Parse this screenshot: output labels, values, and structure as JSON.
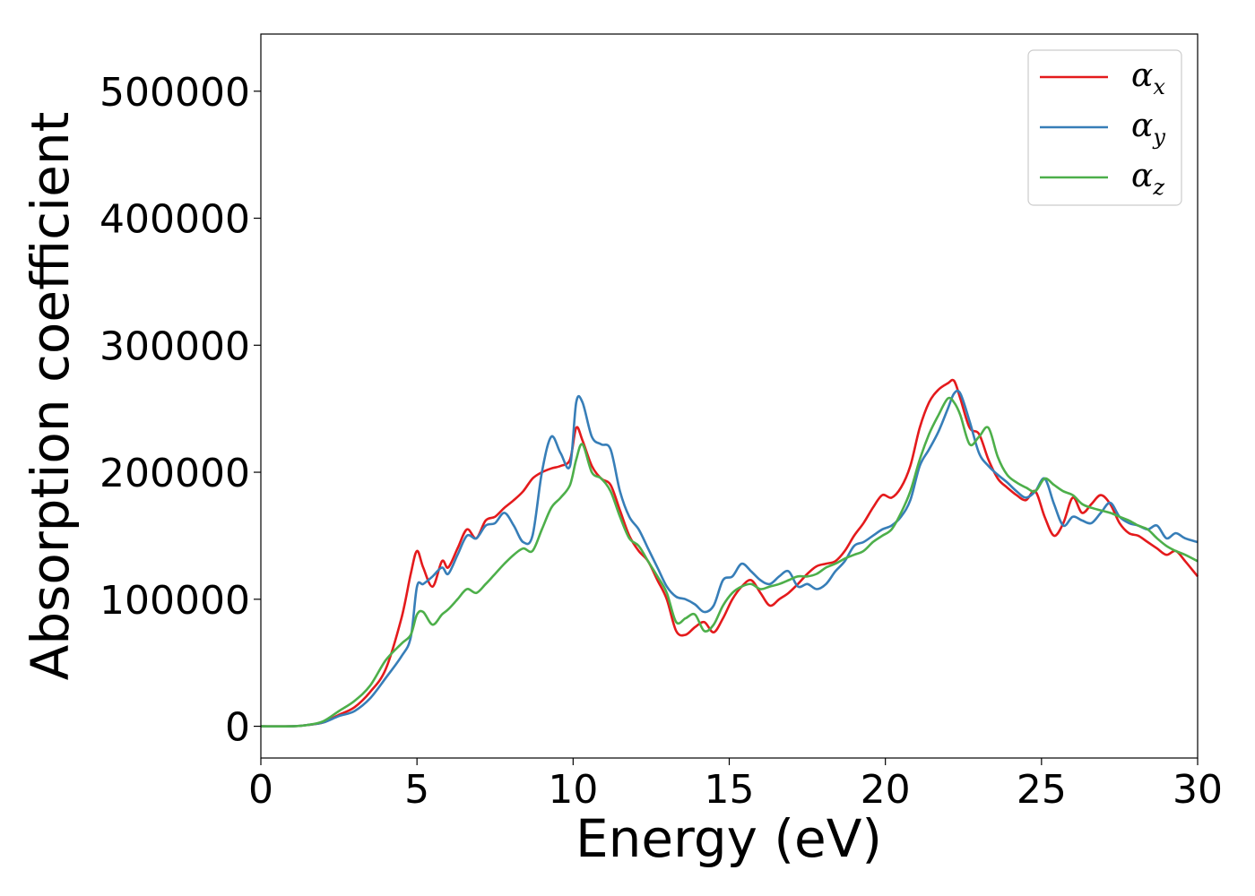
{
  "chart_data": {
    "type": "line",
    "title": "",
    "xlabel": "Energy (eV)",
    "ylabel": "Absorption coefficient",
    "xlim": [
      0,
      30
    ],
    "ylim": [
      -25000,
      545000
    ],
    "xticks": [
      0,
      5,
      10,
      15,
      20,
      25,
      30
    ],
    "yticks": [
      0,
      100000,
      200000,
      300000,
      400000,
      500000
    ],
    "grid": false,
    "legend_position": "top-right",
    "series": [
      {
        "name": "α_x",
        "symbol": "α",
        "subscript": "x",
        "color": "#e41a1c",
        "x": [
          0,
          1,
          1.5,
          2,
          2.5,
          3,
          3.5,
          4,
          4.5,
          4.8,
          5,
          5.2,
          5.5,
          5.8,
          6,
          6.3,
          6.6,
          6.9,
          7.2,
          7.5,
          7.8,
          8.1,
          8.4,
          8.7,
          9,
          9.3,
          9.6,
          9.9,
          10.1,
          10.3,
          10.6,
          10.9,
          11.2,
          11.5,
          11.8,
          12.1,
          12.4,
          12.7,
          13,
          13.3,
          13.6,
          13.9,
          14.2,
          14.5,
          14.8,
          15.1,
          15.4,
          15.7,
          16,
          16.3,
          16.6,
          16.9,
          17.2,
          17.5,
          17.8,
          18.1,
          18.4,
          18.7,
          19,
          19.3,
          19.6,
          19.9,
          20.2,
          20.5,
          20.8,
          21.1,
          21.4,
          21.7,
          22,
          22.2,
          22.4,
          22.7,
          23,
          23.3,
          23.6,
          23.9,
          24.2,
          24.5,
          24.8,
          25.1,
          25.4,
          25.7,
          26,
          26.3,
          26.6,
          26.9,
          27.2,
          27.5,
          27.8,
          28.1,
          28.4,
          28.7,
          29,
          29.3,
          29.6,
          30
        ],
        "y": [
          0,
          0,
          1000,
          3000,
          9000,
          15000,
          27000,
          45000,
          85000,
          120000,
          138000,
          125000,
          110000,
          130000,
          125000,
          140000,
          155000,
          148000,
          162000,
          165000,
          172000,
          178000,
          185000,
          195000,
          200000,
          203000,
          205000,
          210000,
          235000,
          225000,
          205000,
          195000,
          190000,
          170000,
          150000,
          138000,
          130000,
          115000,
          100000,
          75000,
          72000,
          78000,
          82000,
          74000,
          85000,
          100000,
          110000,
          115000,
          105000,
          95000,
          100000,
          105000,
          112000,
          120000,
          126000,
          128000,
          130000,
          138000,
          150000,
          160000,
          172000,
          182000,
          180000,
          188000,
          205000,
          235000,
          255000,
          265000,
          270000,
          272000,
          258000,
          235000,
          230000,
          210000,
          195000,
          188000,
          182000,
          178000,
          185000,
          165000,
          150000,
          160000,
          180000,
          168000,
          175000,
          182000,
          175000,
          160000,
          152000,
          150000,
          145000,
          140000,
          135000,
          138000,
          130000,
          118000
        ]
      },
      {
        "name": "α_y",
        "symbol": "α",
        "subscript": "y",
        "color": "#377eb8",
        "x": [
          0,
          1,
          1.5,
          2,
          2.5,
          3,
          3.5,
          4,
          4.5,
          4.8,
          5,
          5.2,
          5.5,
          5.8,
          6,
          6.3,
          6.6,
          6.9,
          7.2,
          7.5,
          7.8,
          8.1,
          8.4,
          8.7,
          9,
          9.3,
          9.6,
          9.9,
          10.1,
          10.3,
          10.6,
          10.9,
          11.2,
          11.5,
          11.8,
          12.1,
          12.4,
          12.7,
          13,
          13.3,
          13.6,
          13.9,
          14.2,
          14.5,
          14.8,
          15.1,
          15.4,
          15.7,
          16,
          16.3,
          16.6,
          16.9,
          17.2,
          17.5,
          17.8,
          18.1,
          18.4,
          18.7,
          19,
          19.3,
          19.6,
          19.9,
          20.2,
          20.5,
          20.8,
          21.1,
          21.4,
          21.7,
          22,
          22.2,
          22.4,
          22.7,
          23,
          23.3,
          23.6,
          23.9,
          24.2,
          24.5,
          24.8,
          25.1,
          25.4,
          25.7,
          26,
          26.3,
          26.6,
          26.9,
          27.2,
          27.5,
          27.8,
          28.1,
          28.4,
          28.7,
          29,
          29.3,
          29.6,
          30
        ],
        "y": [
          0,
          0,
          1000,
          3000,
          8000,
          12000,
          22000,
          38000,
          55000,
          70000,
          110000,
          112000,
          118000,
          125000,
          120000,
          135000,
          150000,
          148000,
          158000,
          160000,
          168000,
          158000,
          145000,
          150000,
          200000,
          228000,
          215000,
          205000,
          255000,
          255000,
          228000,
          222000,
          218000,
          185000,
          165000,
          155000,
          140000,
          125000,
          110000,
          102000,
          100000,
          96000,
          90000,
          95000,
          115000,
          118000,
          128000,
          122000,
          115000,
          112000,
          118000,
          122000,
          110000,
          112000,
          108000,
          112000,
          122000,
          130000,
          142000,
          145000,
          150000,
          155000,
          158000,
          165000,
          178000,
          205000,
          218000,
          232000,
          250000,
          262000,
          262000,
          240000,
          215000,
          205000,
          198000,
          192000,
          185000,
          180000,
          185000,
          195000,
          175000,
          158000,
          165000,
          162000,
          160000,
          168000,
          176000,
          165000,
          160000,
          158000,
          155000,
          158000,
          148000,
          152000,
          148000,
          145000
        ]
      },
      {
        "name": "α_z",
        "symbol": "α",
        "subscript": "z",
        "color": "#4daf4a",
        "x": [
          0,
          1,
          1.5,
          2,
          2.5,
          3,
          3.5,
          4,
          4.5,
          4.8,
          5,
          5.2,
          5.5,
          5.8,
          6,
          6.3,
          6.6,
          6.9,
          7.2,
          7.5,
          7.8,
          8.1,
          8.4,
          8.7,
          9,
          9.3,
          9.6,
          9.9,
          10.1,
          10.3,
          10.6,
          10.9,
          11.2,
          11.5,
          11.8,
          12.1,
          12.4,
          12.7,
          13,
          13.3,
          13.6,
          13.9,
          14.2,
          14.5,
          14.8,
          15.1,
          15.4,
          15.7,
          16,
          16.3,
          16.6,
          16.9,
          17.2,
          17.5,
          17.8,
          18.1,
          18.4,
          18.7,
          19,
          19.3,
          19.6,
          19.9,
          20.2,
          20.5,
          20.8,
          21.1,
          21.4,
          21.7,
          22,
          22.2,
          22.4,
          22.7,
          23,
          23.3,
          23.6,
          23.9,
          24.2,
          24.5,
          24.8,
          25.1,
          25.4,
          25.7,
          26,
          26.3,
          26.6,
          26.9,
          27.2,
          27.5,
          27.8,
          28.1,
          28.4,
          28.7,
          29,
          29.3,
          29.6,
          30
        ],
        "y": [
          0,
          0,
          1000,
          4000,
          12000,
          20000,
          32000,
          52000,
          65000,
          72000,
          88000,
          90000,
          80000,
          88000,
          92000,
          100000,
          108000,
          105000,
          112000,
          120000,
          128000,
          135000,
          140000,
          138000,
          155000,
          172000,
          180000,
          190000,
          210000,
          222000,
          200000,
          195000,
          185000,
          165000,
          148000,
          142000,
          130000,
          118000,
          105000,
          82000,
          85000,
          88000,
          75000,
          80000,
          95000,
          105000,
          110000,
          112000,
          108000,
          110000,
          112000,
          115000,
          118000,
          118000,
          120000,
          125000,
          128000,
          132000,
          135000,
          138000,
          145000,
          150000,
          155000,
          168000,
          185000,
          210000,
          230000,
          245000,
          258000,
          255000,
          245000,
          222000,
          228000,
          235000,
          212000,
          198000,
          192000,
          188000,
          185000,
          195000,
          190000,
          185000,
          182000,
          175000,
          172000,
          170000,
          168000,
          165000,
          162000,
          158000,
          155000,
          148000,
          142000,
          138000,
          135000,
          130000
        ]
      }
    ]
  }
}
